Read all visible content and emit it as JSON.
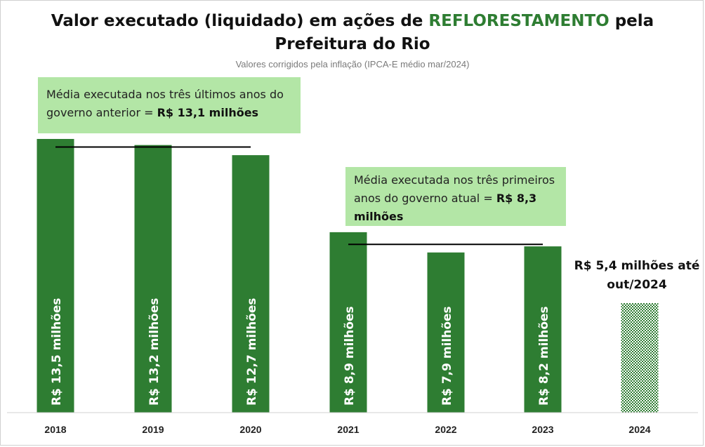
{
  "title_line1_prefix": "Valor executado (liquidado) em ações de ",
  "title_highlight": "REFLORESTAMENTO",
  "title_line1_suffix": " pela",
  "title_line2": "Prefeitura do Rio",
  "subtitle": "Valores corrigidos pela inflação (IPCA-E médio mar/2024)",
  "colors": {
    "bar": "#2e7d32",
    "annotation_box": "#b3e6a6",
    "title_highlight": "#2e7d32"
  },
  "annotations": {
    "previous_gov": {
      "text": "Média executada nos três últimos anos do governo anterior = ",
      "value": "R$ 13,1 milhões"
    },
    "current_gov": {
      "text": "Média executada nos três primeiros anos do governo atual = ",
      "value": "R$ 8,3 milhões"
    },
    "partial_2024": {
      "line1": "R$ 5,4 milhões até",
      "line2": "out/2024"
    }
  },
  "chart_data": {
    "type": "bar",
    "title": "Valor executado (liquidado) em ações de REFLORESTAMENTO pela Prefeitura do Rio",
    "subtitle": "Valores corrigidos pela inflação (IPCA-E médio mar/2024)",
    "categories": [
      "2018",
      "2019",
      "2020",
      "2021",
      "2022",
      "2023",
      "2024"
    ],
    "values": [
      13.5,
      13.2,
      12.7,
      8.9,
      7.9,
      8.2,
      5.4
    ],
    "data_labels": [
      "R$ 13,5 milhões",
      "R$ 13,2 milhões",
      "R$ 12,7 milhões",
      "R$ 8,9 milhões",
      "R$ 7,9 milhões",
      "R$ 8,2 milhões",
      ""
    ],
    "partial_year": "2024",
    "ylim": [
      0,
      13.5
    ],
    "grid": false,
    "average_lines": [
      {
        "value": 13.1,
        "from": "2018",
        "to": "2020"
      },
      {
        "value": 8.3,
        "from": "2021",
        "to": "2023"
      }
    ]
  }
}
